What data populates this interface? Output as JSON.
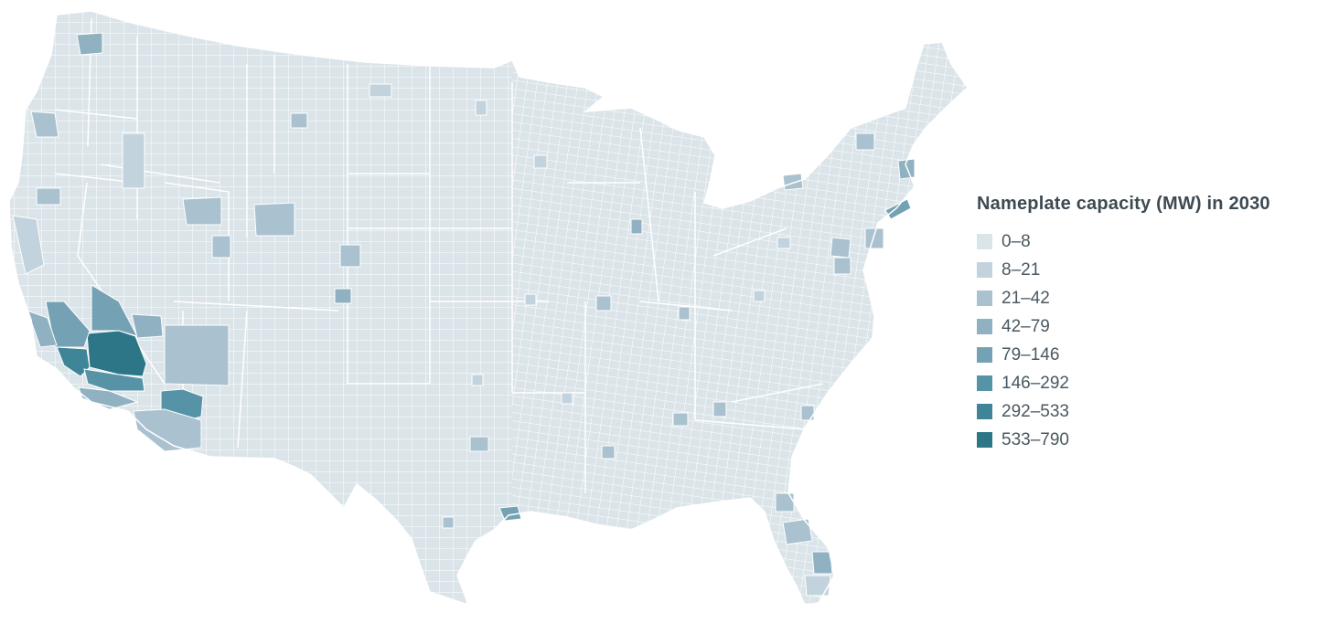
{
  "legend": {
    "title": "Nameplate capacity (MW) in 2030",
    "items": [
      {
        "label": "0–8",
        "color": "#dbe4e9"
      },
      {
        "label": "8–21",
        "color": "#c3d3dd"
      },
      {
        "label": "21–42",
        "color": "#aac2cf"
      },
      {
        "label": "42–79",
        "color": "#90b1c1"
      },
      {
        "label": "79–146",
        "color": "#74a2b4"
      },
      {
        "label": "146–292",
        "color": "#5793a6"
      },
      {
        "label": "292–533",
        "color": "#3d8597"
      },
      {
        "label": "533–790",
        "color": "#2d7687"
      }
    ]
  },
  "map": {
    "type": "choropleth",
    "region": "Contiguous United States, counties",
    "base_color": "#dbe4e9",
    "border_color": "#ffffff"
  }
}
